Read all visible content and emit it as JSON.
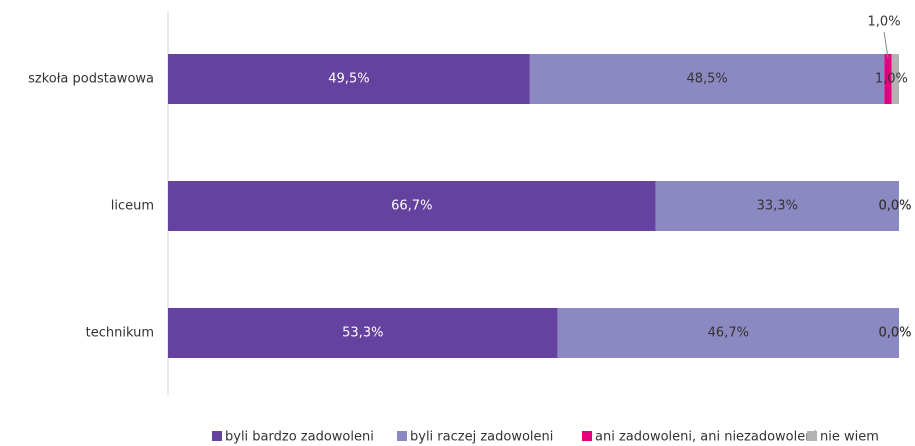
{
  "chart_data": {
    "type": "stacked-bar-horizontal",
    "categories": [
      "szkoła podstawowa",
      "liceum",
      "technikum"
    ],
    "xlim": [
      0,
      100
    ],
    "legend": "bottom",
    "series": [
      {
        "name": "byli bardzo zadowoleni",
        "color": "#6541a0",
        "values": [
          49.5,
          66.7,
          53.3
        ],
        "value_labels": [
          "49,5%",
          "66,7%",
          "53,3%"
        ]
      },
      {
        "name": "byli raczej zadowoleni",
        "color": "#8c88c2",
        "values": [
          48.5,
          33.3,
          46.7
        ],
        "value_labels": [
          "48,5%",
          "33,3%",
          "46,7%"
        ]
      },
      {
        "name": "ani zadowoleni, ani niezadowoleni",
        "color": "#e5007d",
        "values": [
          1.0,
          0.0,
          0.0
        ],
        "value_labels": [
          "1,0%",
          "0,0%",
          "0,0%"
        ]
      },
      {
        "name": "nie wiem",
        "color": "#b3b3b3",
        "values": [
          1.0,
          0.0,
          0.0
        ],
        "value_labels": [
          "1,0%",
          "0,0%",
          "0,0%"
        ]
      }
    ]
  }
}
